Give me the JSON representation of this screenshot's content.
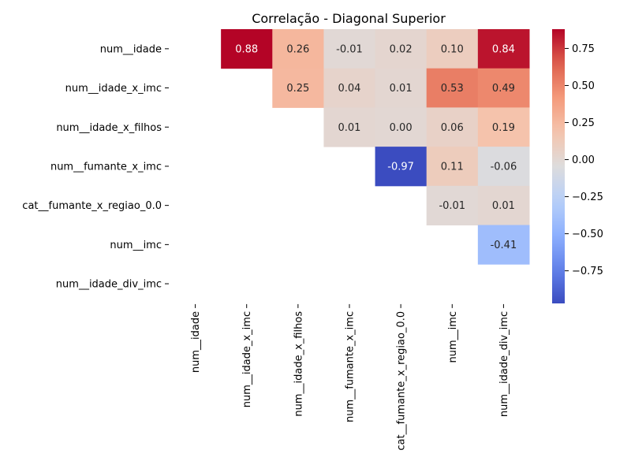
{
  "chart_data": {
    "type": "heatmap",
    "title": "Correlação - Diagonal Superior",
    "row_labels": [
      "num__idade",
      "num__idade_x_imc",
      "num__idade_x_filhos",
      "num__fumante_x_imc",
      "cat__fumante_x_regiao_0.0",
      "num__imc",
      "num__idade_div_imc"
    ],
    "col_labels": [
      "num__idade",
      "num__idade_x_imc",
      "num__idade_x_filhos",
      "num__fumante_x_imc",
      "cat__fumante_x_regiao_0.0",
      "num__imc",
      "num__idade_div_imc"
    ],
    "values": [
      [
        null,
        0.88,
        0.26,
        -0.01,
        0.02,
        0.1,
        0.84
      ],
      [
        null,
        null,
        0.25,
        0.04,
        0.01,
        0.53,
        0.49
      ],
      [
        null,
        null,
        null,
        0.01,
        -0.0,
        0.06,
        0.19
      ],
      [
        null,
        null,
        null,
        null,
        -0.97,
        0.11,
        -0.06
      ],
      [
        null,
        null,
        null,
        null,
        null,
        -0.01,
        0.01
      ],
      [
        null,
        null,
        null,
        null,
        null,
        null,
        -0.41
      ],
      [
        null,
        null,
        null,
        null,
        null,
        null,
        null
      ]
    ],
    "value_format": "0.00",
    "colormap": "coolwarm",
    "vmin": -0.97,
    "vmax": 0.88,
    "colorbar_ticks": [
      0.75,
      0.5,
      0.25,
      0.0,
      -0.25,
      -0.5,
      -0.75
    ],
    "colorbar_tick_labels": [
      "0.75",
      "0.50",
      "0.25",
      "0.00",
      "−0.25",
      "−0.50",
      "−0.75"
    ],
    "masked": "lower triangle and diagonal",
    "grid": false
  }
}
